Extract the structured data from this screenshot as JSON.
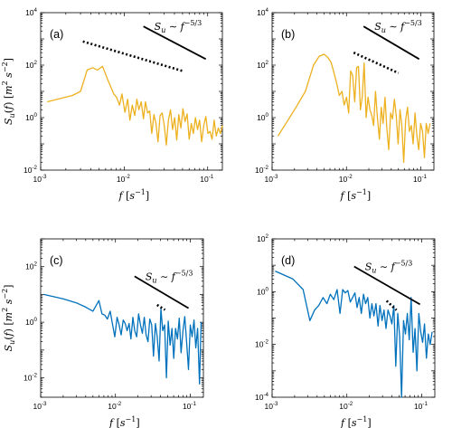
{
  "chart_data": [
    {
      "type": "line",
      "panel_label": "(a)",
      "color": "#EDB120",
      "xscale": "log",
      "yscale": "log",
      "xlim": [
        0.001,
        0.15
      ],
      "ylim": [
        0.01,
        10000
      ],
      "xticks": [
        {
          "exp": "-3"
        },
        {
          "exp": "-2"
        },
        {
          "exp": "-1"
        }
      ],
      "yticks": [
        {
          "exp": "-2"
        },
        {
          "exp": "0"
        },
        {
          "exp": "2"
        },
        {
          "exp": "4"
        }
      ],
      "ylabel": "S_u(f) [m^2 s^-2]",
      "xlabel": "f [s^-1]",
      "ref_label": "S_u ~ f^-5/3",
      "solid_ref": {
        "x": [
          0.017,
          0.095
        ],
        "y": [
          3000,
          170
        ]
      },
      "dotted_ref": {
        "x": [
          0.0032,
          0.05
        ],
        "y": [
          800,
          60
        ]
      },
      "x": [
        0.0012,
        0.0024,
        0.003,
        0.0036,
        0.0042,
        0.0048,
        0.0055,
        0.0063,
        0.0069,
        0.0075,
        0.0081,
        0.0088,
        0.0094,
        0.0102,
        0.011,
        0.0117,
        0.0125,
        0.0134,
        0.0142,
        0.015,
        0.016,
        0.017,
        0.018,
        0.0191,
        0.0202,
        0.0214,
        0.0227,
        0.024,
        0.0254,
        0.0269,
        0.0285,
        0.0302,
        0.032,
        0.0339,
        0.0359,
        0.038,
        0.0402,
        0.0426,
        0.0451,
        0.0478,
        0.0506,
        0.0536,
        0.0568,
        0.0601,
        0.0637,
        0.0674,
        0.0714,
        0.0756,
        0.0801,
        0.0848,
        0.0898,
        0.0951,
        0.1007,
        0.1067,
        0.113,
        0.1196,
        0.1267,
        0.1342,
        0.1421,
        0.1505
      ],
      "y": [
        4,
        7,
        10,
        65,
        80,
        65,
        90,
        30,
        15,
        8,
        6,
        3,
        8,
        1.6,
        5,
        0.8,
        3,
        1.2,
        5,
        2,
        4,
        0.9,
        4,
        1.5,
        1.8,
        0.25,
        1.3,
        0.6,
        0.12,
        1.2,
        1.5,
        0.5,
        0.09,
        0.8,
        2,
        0.35,
        1,
        0.14,
        1.3,
        0.4,
        2.2,
        0.7,
        1.4,
        0.15,
        0.6,
        0.25,
        1,
        0.35,
        0.8,
        0.12,
        0.5,
        1.1,
        0.25,
        0.3,
        0.15,
        0.8,
        0.2,
        0.4,
        0.25,
        0.5
      ]
    },
    {
      "type": "line",
      "panel_label": "(b)",
      "color": "#EDB120",
      "xscale": "log",
      "yscale": "log",
      "xlim": [
        0.001,
        0.15
      ],
      "ylim": [
        0.01,
        10000
      ],
      "xticks": [
        {
          "exp": "-3"
        },
        {
          "exp": "-2"
        },
        {
          "exp": "-1"
        }
      ],
      "yticks": [
        {
          "exp": "-2"
        },
        {
          "exp": "0"
        },
        {
          "exp": "2"
        },
        {
          "exp": "4"
        }
      ],
      "ylabel": "",
      "xlabel": "f [s^-1]",
      "ref_label": "S_u ~ f^-5/3",
      "solid_ref": {
        "x": [
          0.017,
          0.095
        ],
        "y": [
          3000,
          170
        ]
      },
      "dotted_ref": {
        "x": [
          0.0125,
          0.05
        ],
        "y": [
          300,
          50
        ]
      },
      "x": [
        0.0012,
        0.002,
        0.0028,
        0.0036,
        0.0043,
        0.005,
        0.0056,
        0.0062,
        0.0068,
        0.0074,
        0.008,
        0.0087,
        0.0093,
        0.01,
        0.0107,
        0.0114,
        0.0121,
        0.0129,
        0.0137,
        0.0145,
        0.0154,
        0.0163,
        0.0173,
        0.0184,
        0.0195,
        0.0207,
        0.0219,
        0.0232,
        0.0246,
        0.0261,
        0.0277,
        0.0293,
        0.0311,
        0.033,
        0.0349,
        0.037,
        0.0392,
        0.0416,
        0.0441,
        0.0467,
        0.0495,
        0.0525,
        0.0556,
        0.0589,
        0.0625,
        0.0662,
        0.0702,
        0.0744,
        0.0788,
        0.0835,
        0.0885,
        0.0938,
        0.0994,
        0.1054,
        0.1117,
        0.1184,
        0.1255,
        0.133
      ],
      "y": [
        0.2,
        2,
        10,
        100,
        220,
        260,
        200,
        130,
        50,
        20,
        7,
        10,
        3,
        6,
        1.5,
        60,
        40,
        4,
        80,
        90,
        2,
        6,
        120,
        1,
        6,
        2,
        1.2,
        0.5,
        10,
        1,
        0.15,
        2.5,
        0.6,
        6,
        0.4,
        0.06,
        1.5,
        0.9,
        5,
        1.2,
        0.1,
        2,
        0.5,
        0.02,
        0.8,
        2.5,
        0.3,
        0.5,
        0.1,
        1.5,
        0.2,
        0.06,
        0.6,
        0.3,
        0.03,
        0.6,
        0.25,
        0.6
      ]
    },
    {
      "type": "line",
      "panel_label": "(c)",
      "color": "#0072BD",
      "xscale": "log",
      "yscale": "log",
      "xlim": [
        0.001,
        0.15
      ],
      "ylim": [
        0.002,
        1000
      ],
      "xticks": [
        {
          "exp": "-3"
        },
        {
          "exp": "-2"
        },
        {
          "exp": "-1"
        }
      ],
      "yticks": [
        {
          "exp": "-2"
        },
        {
          "exp": "0"
        },
        {
          "exp": "2"
        }
      ],
      "ylabel": "S_u(f) [m^2 s^-2]",
      "xlabel": "f [s^-1]",
      "ref_label": "S_u ~ f^-5/3",
      "solid_ref": {
        "x": [
          0.018,
          0.095
        ],
        "y": [
          45,
          3.2
        ]
      },
      "dotted_ref": {
        "x": [
          0.036,
          0.046
        ],
        "y": [
          4.2,
          2.8
        ]
      },
      "x": [
        0.0011,
        0.002,
        0.003,
        0.004,
        0.005,
        0.006,
        0.0066,
        0.0072,
        0.0078,
        0.0085,
        0.0091,
        0.0098,
        0.0105,
        0.0112,
        0.0119,
        0.0127,
        0.0135,
        0.0143,
        0.0152,
        0.0161,
        0.0171,
        0.0181,
        0.0192,
        0.0204,
        0.0216,
        0.0229,
        0.0243,
        0.0257,
        0.0272,
        0.0288,
        0.0305,
        0.0323,
        0.0342,
        0.0362,
        0.0383,
        0.0405,
        0.0429,
        0.0454,
        0.048,
        0.0508,
        0.0538,
        0.0569,
        0.0602,
        0.0637,
        0.0674,
        0.0713,
        0.0755,
        0.0799,
        0.0846,
        0.0895,
        0.0947,
        0.1002,
        0.106,
        0.1122,
        0.1187,
        0.1256,
        0.1329,
        0.14
      ],
      "y": [
        10,
        7,
        5,
        3.5,
        2.5,
        6,
        2,
        1.8,
        1.3,
        2.5,
        0.9,
        0.3,
        1.5,
        0.8,
        0.35,
        1.2,
        0.9,
        0.5,
        0.9,
        0.25,
        1.5,
        0.5,
        0.3,
        2,
        0.8,
        0.4,
        1.5,
        0.35,
        0.2,
        1.3,
        0.8,
        0.06,
        0.9,
        0.3,
        0.04,
        3,
        0.5,
        0.8,
        0.01,
        1.1,
        0.15,
        0.6,
        0.05,
        0.6,
        0.25,
        1.4,
        0.08,
        0.5,
        1.6,
        0.2,
        0.02,
        0.8,
        0.3,
        1.2,
        0.12,
        0.6,
        0.006,
        1
      ]
    },
    {
      "type": "line",
      "panel_label": "(d)",
      "color": "#0072BD",
      "xscale": "log",
      "yscale": "log",
      "xlim": [
        0.001,
        0.15
      ],
      "ylim": [
        0.0001,
        100
      ],
      "xticks": [
        {
          "exp": "-3"
        },
        {
          "exp": "-2"
        },
        {
          "exp": "-1"
        }
      ],
      "yticks": [
        {
          "exp": "-4"
        },
        {
          "exp": "-2"
        },
        {
          "exp": "0"
        },
        {
          "exp": "2"
        }
      ],
      "ylabel": "",
      "xlabel": "f [s^-1]",
      "ref_label": "S_u ~ f^-5/3",
      "solid_ref": {
        "x": [
          0.0125,
          0.095
        ],
        "y": [
          9,
          0.33
        ]
      },
      "dotted_ref": {
        "x": [
          0.034,
          0.046
        ],
        "y": [
          0.45,
          0.2
        ]
      },
      "x": [
        0.0011,
        0.0019,
        0.0026,
        0.0032,
        0.0037,
        0.0042,
        0.0048,
        0.0054,
        0.006,
        0.0067,
        0.0074,
        0.0081,
        0.0088,
        0.0095,
        0.0103,
        0.0111,
        0.0119,
        0.0128,
        0.0137,
        0.0146,
        0.0156,
        0.0167,
        0.0178,
        0.019,
        0.0203,
        0.0216,
        0.023,
        0.0245,
        0.0261,
        0.0277,
        0.0295,
        0.0314,
        0.0334,
        0.0355,
        0.0377,
        0.04,
        0.0425,
        0.0451,
        0.0479,
        0.0508,
        0.0539,
        0.0572,
        0.0607,
        0.0644,
        0.0683,
        0.0724,
        0.0768,
        0.0815,
        0.0864,
        0.0916,
        0.0971,
        0.103,
        0.1092,
        0.1158,
        0.1228,
        0.1302,
        0.138
      ],
      "y": [
        6,
        3,
        1.2,
        0.08,
        0.2,
        0.3,
        0.6,
        0.35,
        0.8,
        0.5,
        1.2,
        0.15,
        1.2,
        0.9,
        1.1,
        0.4,
        0.6,
        0.9,
        0.25,
        0.6,
        0.15,
        0.8,
        0.35,
        0.6,
        0.1,
        0.35,
        0.12,
        0.35,
        0.05,
        0.3,
        0.08,
        0.2,
        0.04,
        0.2,
        0.12,
        0.06,
        0.3,
        0.0015,
        0.15,
        0.02,
        0.0001,
        0.08,
        0.025,
        0.15,
        0.015,
        0.6,
        0.005,
        0.04,
        0.001,
        0.15,
        0.03,
        0.012,
        0.06,
        0.003,
        0.025,
        0.01,
        0.03
      ]
    }
  ]
}
